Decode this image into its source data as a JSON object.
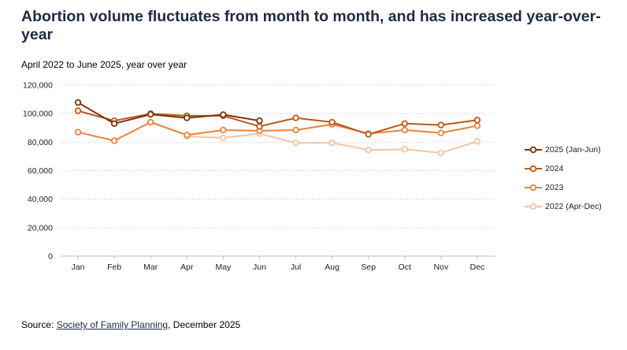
{
  "title": "Abortion volume fluctuates from month to month, and has increased year-over-year",
  "subtitle": "April 2022 to June 2025, year over year",
  "source": {
    "prefix": "Source: ",
    "link_text": "Society of Family Planning",
    "suffix": ", December 2025"
  },
  "chart_data": {
    "type": "line",
    "categories": [
      "Jan",
      "Feb",
      "Mar",
      "Apr",
      "May",
      "Jun",
      "Jul",
      "Aug",
      "Sep",
      "Oct",
      "Nov",
      "Dec"
    ],
    "ylim": [
      0,
      120000
    ],
    "yticks": [
      0,
      20000,
      40000,
      60000,
      80000,
      100000,
      120000
    ],
    "ytick_labels": [
      "0",
      "20,000",
      "40,000",
      "60,000",
      "80,000",
      "100,000",
      "120,000"
    ],
    "grid": true,
    "legend_position": "right",
    "series": [
      {
        "name": "2025 (Jan-Jun)",
        "color": "#7a3410",
        "values": [
          107800,
          93000,
          99500,
          97000,
          99300,
          95000,
          null,
          null,
          null,
          null,
          null,
          null
        ]
      },
      {
        "name": "2024",
        "color": "#c0561b",
        "values": [
          102000,
          95000,
          100000,
          98500,
          98500,
          91000,
          97000,
          94000,
          85500,
          93000,
          92000,
          95500
        ]
      },
      {
        "name": "2023",
        "color": "#e8823a",
        "values": [
          87000,
          81000,
          94000,
          85000,
          88500,
          88000,
          88500,
          92500,
          86000,
          88500,
          86500,
          91500
        ]
      },
      {
        "name": "2022 (Apr-Dec)",
        "color": "#f4c4a2",
        "values": [
          null,
          null,
          null,
          84000,
          83000,
          86000,
          79500,
          79500,
          74500,
          75000,
          72500,
          80500
        ]
      }
    ]
  }
}
